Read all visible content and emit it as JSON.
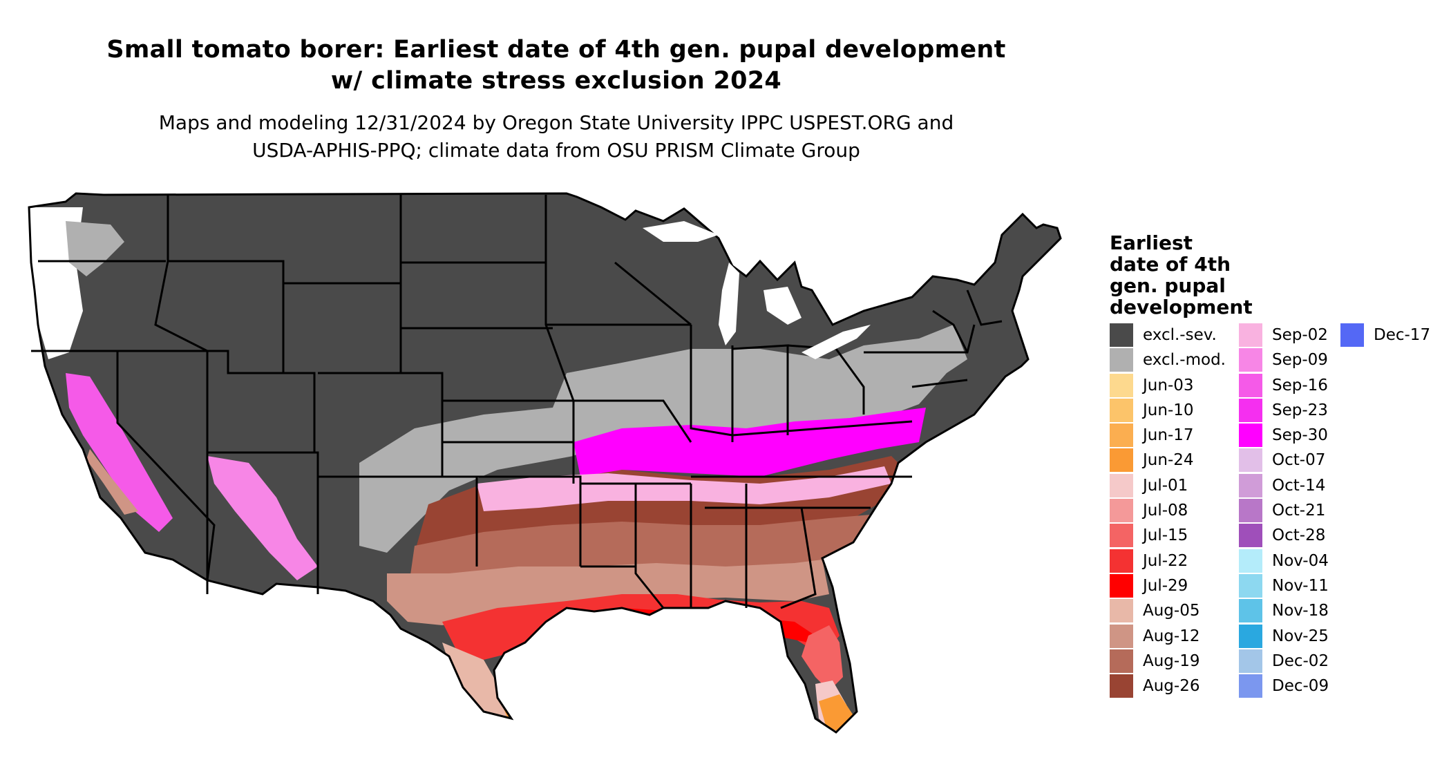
{
  "title_line1": "Small tomato borer: Earliest date of 4th gen. pupal development",
  "title_line2": "w/ climate stress exclusion 2024",
  "subtitle_line1": "Maps and modeling 12/31/2024 by Oregon State University IPPC USPEST.ORG and",
  "subtitle_line2": "USDA-APHIS-PPQ; climate data from OSU PRISM Climate Group",
  "legend": {
    "title_lines": [
      "Earliest",
      "date of 4th",
      "gen. pupal",
      "development"
    ],
    "columns": [
      [
        {
          "label": "excl.-sev.",
          "color": "#4a4a4a"
        },
        {
          "label": "excl.-mod.",
          "color": "#b0b0b0"
        },
        {
          "label": "Jun-03",
          "color": "#fdd98e"
        },
        {
          "label": "Jun-10",
          "color": "#fcc46a"
        },
        {
          "label": "Jun-17",
          "color": "#fbae50"
        },
        {
          "label": "Jun-24",
          "color": "#fa9a34"
        },
        {
          "label": "Jul-01",
          "color": "#f5c9c9"
        },
        {
          "label": "Jul-08",
          "color": "#f49999"
        },
        {
          "label": "Jul-15",
          "color": "#f46464"
        },
        {
          "label": "Jul-22",
          "color": "#f43232"
        },
        {
          "label": "Jul-29",
          "color": "#ff0000"
        },
        {
          "label": "Aug-05",
          "color": "#e8b8a8"
        },
        {
          "label": "Aug-12",
          "color": "#cf9585"
        },
        {
          "label": "Aug-19",
          "color": "#b56b5a"
        },
        {
          "label": "Aug-26",
          "color": "#994433"
        }
      ],
      [
        {
          "label": "Sep-02",
          "color": "#f9b2e0"
        },
        {
          "label": "Sep-09",
          "color": "#f786e6"
        },
        {
          "label": "Sep-16",
          "color": "#f55ae8"
        },
        {
          "label": "Sep-23",
          "color": "#f52ff0"
        },
        {
          "label": "Sep-30",
          "color": "#ff00ff"
        },
        {
          "label": "Oct-07",
          "color": "#e2bfe8"
        },
        {
          "label": "Oct-14",
          "color": "#d09cd8"
        },
        {
          "label": "Oct-21",
          "color": "#b877c8"
        },
        {
          "label": "Oct-28",
          "color": "#9f4fba"
        },
        {
          "label": "Nov-04",
          "color": "#b4ecfa"
        },
        {
          "label": "Nov-11",
          "color": "#8dd8f0"
        },
        {
          "label": "Nov-18",
          "color": "#5ec3e8"
        },
        {
          "label": "Nov-25",
          "color": "#2aa8e0"
        },
        {
          "label": "Dec-02",
          "color": "#a3c6e8"
        },
        {
          "label": "Dec-09",
          "color": "#7b97ef"
        }
      ],
      [
        {
          "label": "Dec-17",
          "color": "#5468f5"
        }
      ]
    ]
  },
  "map": {
    "region": "Contiguous United States",
    "map_colors": {
      "state_border": "#000000",
      "background": "#ffffff"
    }
  }
}
